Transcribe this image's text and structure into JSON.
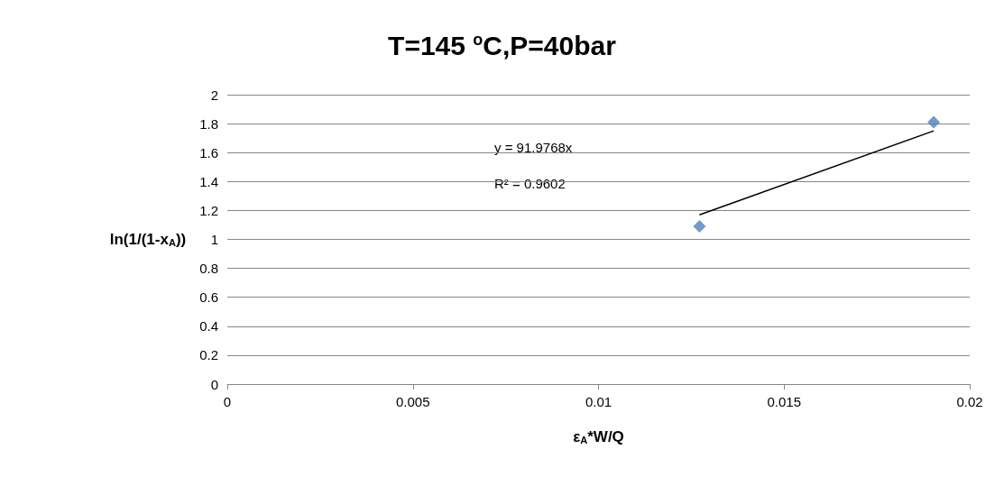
{
  "chart_data": {
    "type": "scatter",
    "title": "T=145 $^{o}$C,P=40bar",
    "xlabel": "ε$_{A}$*W/Q",
    "ylabel": "ln(1/(1-x$_{A}$))",
    "x": [
      0.01272,
      0.01903
    ],
    "series": [
      {
        "type": "scatter",
        "color": "#4f81bd",
        "values": [
          1.09,
          1.81
        ],
        "marker": "diamond"
      },
      {
        "type": "line",
        "color": "#000000",
        "x": [
          0.01272,
          0.01903
        ],
        "values": [
          1.17,
          1.75
        ],
        "marker": "none"
      }
    ],
    "annotations": [
      "y = 91.9768x",
      "R² = 0.9602"
    ],
    "xlim": [
      0,
      0.02
    ],
    "xticks": [
      0,
      0.005,
      0.01,
      0.015,
      0.02
    ],
    "ylim": [
      0,
      2
    ],
    "yticks": [
      0,
      0.2,
      0.4,
      0.6,
      0.8,
      1,
      1.2,
      1.4,
      1.6,
      1.8,
      2
    ],
    "grid": "y"
  }
}
